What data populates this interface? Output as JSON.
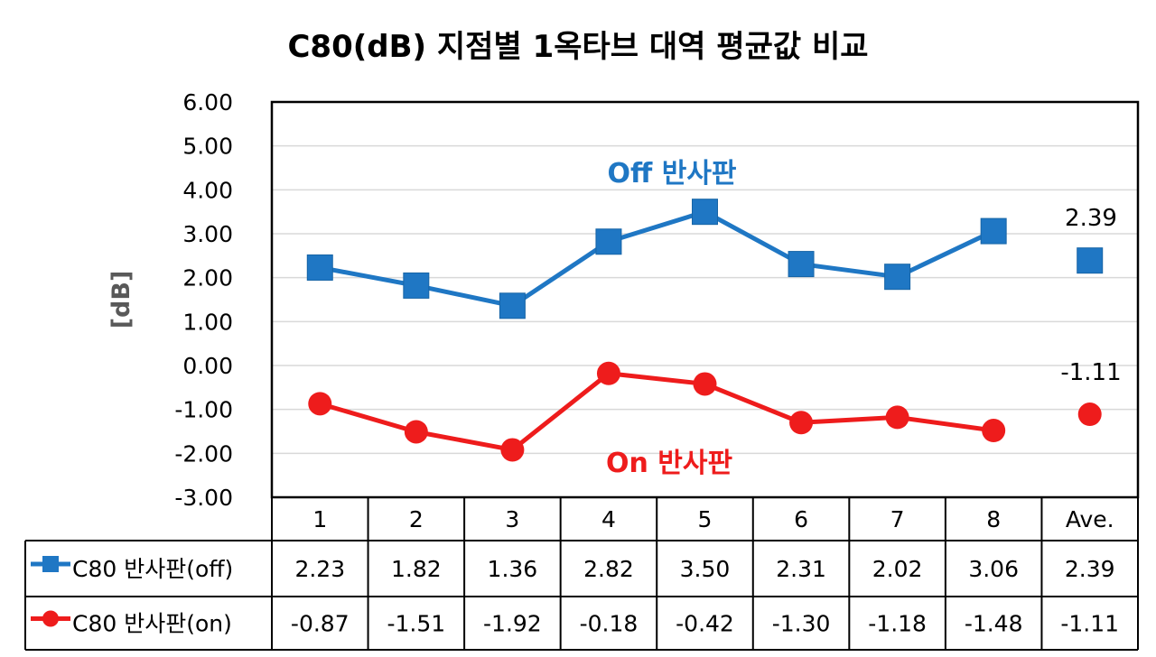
{
  "chart_data": {
    "type": "line",
    "title": "C80(dB) 지점별 1옥타브 대역 평균값 비교",
    "ylabel": "[dB]",
    "ylim": [
      -3,
      6
    ],
    "yticks": [
      "6.00",
      "5.00",
      "4.00",
      "3.00",
      "2.00",
      "1.00",
      "0.00",
      "-1.00",
      "-2.00",
      "-3.00"
    ],
    "categories": [
      "1",
      "2",
      "3",
      "4",
      "5",
      "6",
      "7",
      "8",
      "Ave."
    ],
    "grid": true,
    "series": [
      {
        "name": "C80 반사판(off)",
        "color": "#1f77c4",
        "marker": "square",
        "values": [
          2.23,
          1.82,
          1.36,
          2.82,
          3.5,
          2.31,
          2.02,
          3.06,
          2.39
        ],
        "labels": [
          "2.23",
          "1.82",
          "1.36",
          "2.82",
          "3.50",
          "2.31",
          "2.02",
          "3.06",
          "2.39"
        ]
      },
      {
        "name": "C80 반사판(on)",
        "color": "#ee1c1c",
        "marker": "circle",
        "values": [
          -0.87,
          -1.51,
          -1.92,
          -0.18,
          -0.42,
          -1.3,
          -1.18,
          -1.48,
          -1.11
        ],
        "labels": [
          "-0.87",
          "-1.51",
          "-1.92",
          "-0.18",
          "-0.42",
          "-1.30",
          "-1.18",
          "-1.48",
          "-1.11"
        ]
      }
    ],
    "annotations": {
      "off": "Off 반사판",
      "on": "On 반사판",
      "off_ave": "2.39",
      "on_ave": "-1.11"
    },
    "data_table": true
  }
}
